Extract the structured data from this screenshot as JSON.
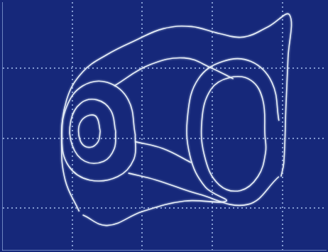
{
  "chart_data": {
    "type": "scatter",
    "line_style": "solid",
    "marker": "none",
    "color": "#e6eef7",
    "grid": true,
    "tick_labels": false,
    "xlim": [
      0,
      4.62
    ],
    "ylim": [
      0,
      3.55
    ],
    "xticks": [
      1,
      2,
      3,
      4
    ],
    "yticks": [
      0.6,
      1.6,
      2.6
    ],
    "series": [
      {
        "x": [
          1.4,
          1.35,
          1.25,
          1.13,
          1.09,
          1.14,
          1.26,
          1.37,
          1.4
        ],
        "y": [
          1.7,
          1.9,
          1.93,
          1.85,
          1.7,
          1.52,
          1.47,
          1.55,
          1.7
        ]
      },
      {
        "x": [
          1.62,
          1.55,
          1.35,
          1.12,
          0.98,
          1.0,
          1.18,
          1.45,
          1.6,
          1.62
        ],
        "y": [
          1.7,
          2.0,
          2.15,
          2.1,
          1.85,
          1.5,
          1.27,
          1.27,
          1.45,
          1.7
        ]
      },
      {
        "x": [
          1.9,
          1.8,
          1.5,
          1.15,
          0.92,
          0.85,
          0.95,
          1.25,
          1.65,
          1.88,
          1.9
        ],
        "y": [
          1.65,
          2.15,
          2.4,
          2.35,
          2.05,
          1.6,
          1.2,
          1.0,
          1.05,
          1.3,
          1.65
        ]
      },
      {
        "x": [
          1.1,
          0.9,
          0.85,
          0.92,
          1.15,
          1.5,
          1.9,
          2.3,
          2.7,
          3.1,
          3.45,
          3.8,
          4.1,
          4.08,
          4.05,
          4.02,
          3.98
        ],
        "y": [
          0.55,
          1.0,
          1.55,
          2.15,
          2.55,
          2.8,
          3.0,
          3.17,
          3.2,
          3.1,
          3.05,
          3.2,
          3.37,
          2.75,
          2.05,
          1.25,
          1.05
        ]
      },
      {
        "x": [
          3.75,
          3.72,
          3.55,
          3.25,
          2.98,
          2.85,
          2.9,
          3.1,
          3.4,
          3.65,
          3.76,
          3.75
        ],
        "y": [
          1.65,
          2.15,
          2.43,
          2.47,
          2.3,
          1.85,
          1.3,
          0.93,
          0.85,
          1.05,
          1.4,
          1.65
        ]
      },
      {
        "x": [
          3.95,
          3.85,
          3.55,
          3.15,
          2.8,
          2.65,
          2.68,
          2.9,
          3.2,
          2.6,
          2.0,
          1.5,
          1.15
        ],
        "y": [
          1.85,
          2.4,
          2.7,
          2.7,
          2.45,
          1.95,
          1.35,
          0.9,
          0.7,
          0.7,
          0.55,
          0.35,
          0.5
        ]
      },
      {
        "x": [
          1.6,
          2.1,
          2.6,
          3.0,
          3.3
        ],
        "y": [
          2.35,
          2.65,
          2.75,
          2.6,
          2.45
        ]
      },
      {
        "x": [
          1.9,
          2.3,
          2.7
        ],
        "y": [
          1.55,
          1.45,
          1.25
        ]
      },
      {
        "x": [
          3.95,
          3.5,
          2.8,
          2.2,
          1.8
        ],
        "y": [
          1.05,
          0.65,
          0.8,
          1.0,
          1.1
        ]
      }
    ]
  }
}
